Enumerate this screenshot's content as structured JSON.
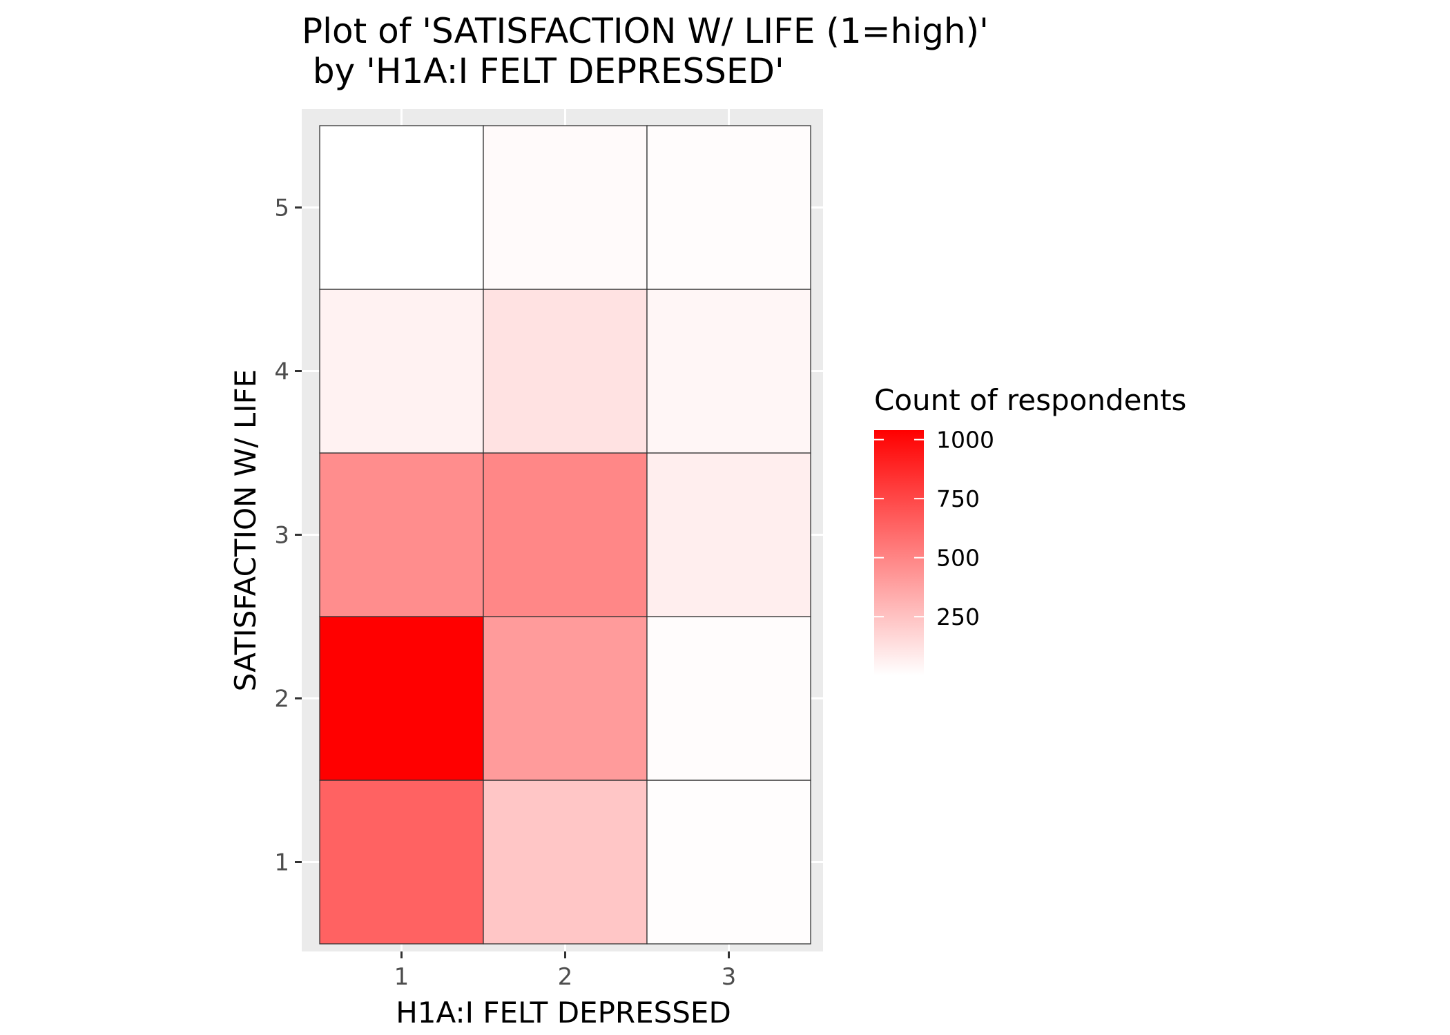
{
  "chart_data": {
    "type": "heatmap",
    "title": "Plot of 'SATISFACTION W/ LIFE (1=high)'",
    "subtitle": " by 'H1A:I FELT DEPRESSED'",
    "xlabel": "H1A:I FELT DEPRESSED",
    "ylabel": "SATISFACTION W/ LIFE",
    "x_categories": [
      "1",
      "2",
      "3"
    ],
    "y_categories": [
      "1",
      "2",
      "3",
      "4",
      "5"
    ],
    "cells": [
      {
        "x": "1",
        "y": "1",
        "value": 640
      },
      {
        "x": "2",
        "y": "1",
        "value": 235
      },
      {
        "x": "3",
        "y": "1",
        "value": 12
      },
      {
        "x": "1",
        "y": "2",
        "value": 1040
      },
      {
        "x": "2",
        "y": "2",
        "value": 410
      },
      {
        "x": "3",
        "y": "2",
        "value": 14
      },
      {
        "x": "1",
        "y": "3",
        "value": 465
      },
      {
        "x": "2",
        "y": "3",
        "value": 490
      },
      {
        "x": "3",
        "y": "3",
        "value": 70
      },
      {
        "x": "1",
        "y": "4",
        "value": 55
      },
      {
        "x": "2",
        "y": "4",
        "value": 120
      },
      {
        "x": "3",
        "y": "4",
        "value": 40
      },
      {
        "x": "1",
        "y": "5",
        "value": 2
      },
      {
        "x": "2",
        "y": "5",
        "value": 22
      },
      {
        "x": "3",
        "y": "5",
        "value": 15
      }
    ],
    "legend": {
      "title": "Count of respondents",
      "ticks": [
        250,
        500,
        750,
        1000
      ],
      "tick_labels": [
        "250",
        "500",
        "750",
        "1000"
      ],
      "range": [
        2,
        1040
      ],
      "low_color": "#ffffff",
      "high_color": "#ff0000",
      "placement": "right"
    },
    "panel_background": "#ebebeb",
    "grid": true
  }
}
